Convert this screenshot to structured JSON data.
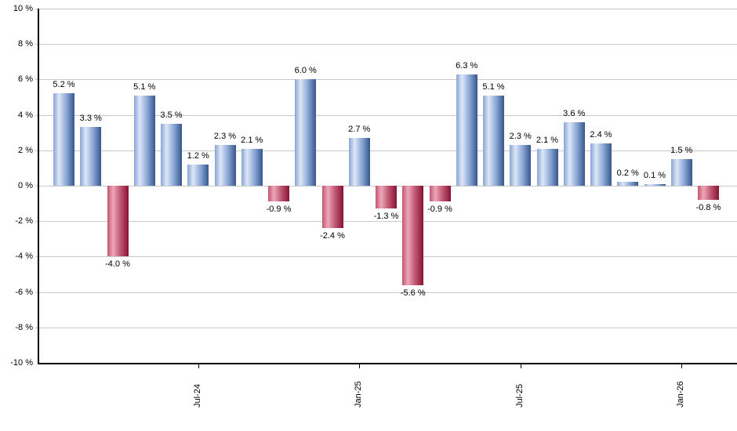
{
  "chart_data": {
    "type": "bar",
    "title": "",
    "xlabel": "",
    "ylabel": "",
    "ylim": [
      -10,
      10
    ],
    "grid": true,
    "legend": "none",
    "y_ticks": [
      "10 %",
      "8 %",
      "6 %",
      "4 %",
      "2 %",
      "0 %",
      "-2 %",
      "-4 %",
      "-6 %",
      "-8 %",
      "-10 %"
    ],
    "values": [
      5.2,
      3.3,
      -4.0,
      5.1,
      3.5,
      1.2,
      2.3,
      2.1,
      -0.9,
      6.0,
      -2.4,
      2.7,
      -1.3,
      -5.6,
      -0.9,
      6.3,
      5.1,
      2.3,
      2.1,
      3.6,
      2.4,
      0.2,
      0.1,
      1.5,
      -0.8
    ],
    "bar_labels": [
      "5.2 %",
      "3.3 %",
      "-4.0 %",
      "5.1 %",
      "3.5 %",
      "1.2 %",
      "2.3 %",
      "2.1 %",
      "-0.9 %",
      "6.0 %",
      "-2.4 %",
      "2.7 %",
      "-1.3 %",
      "-5.6 %",
      "-0.9 %",
      "6.3 %",
      "5.1 %",
      "2.3 %",
      "2.1 %",
      "3.6 %",
      "2.4 %",
      "0.2 %",
      "0.1 %",
      "1.5 %",
      "-0.8 %"
    ],
    "x_ticks": [
      {
        "label": "Jul-24",
        "bar_index": 5
      },
      {
        "label": "Jan-25",
        "bar_index": 11
      },
      {
        "label": "Jul-25",
        "bar_index": 17
      },
      {
        "label": "Jan-26",
        "bar_index": 23
      }
    ],
    "colors": {
      "positive_gradient": [
        "#8aa4d4",
        "#dce7f7",
        "#8fabd8",
        "#35578e"
      ],
      "negative_gradient": [
        "#c25672",
        "#eda7b9",
        "#c05a75",
        "#871231"
      ],
      "gridline": "#c9c9c9",
      "axis": "#000000",
      "label_text": "#000000"
    }
  }
}
